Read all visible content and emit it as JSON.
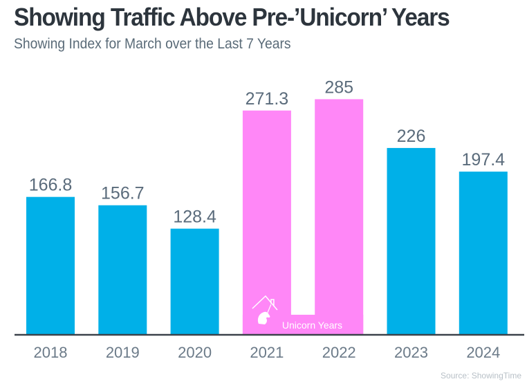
{
  "chart_data": {
    "type": "bar",
    "title": "Showing Traffic Above Pre-’Unicorn’ Years",
    "subtitle": "Showing Index for March over the Last 7 Years",
    "xlabel": "",
    "ylabel": "",
    "categories": [
      "2018",
      "2019",
      "2020",
      "2021",
      "2022",
      "2023",
      "2024"
    ],
    "values": [
      166.8,
      156.7,
      128.4,
      271.3,
      285,
      226,
      197.4
    ],
    "value_labels": [
      "166.8",
      "156.7",
      "128.4",
      "271.3",
      "285",
      "226",
      "197.4"
    ],
    "highlight": {
      "label": "Unicorn Years",
      "categories": [
        "2021",
        "2022"
      ],
      "icon": "unicorn-house-icon"
    },
    "ylim": [
      0,
      405
    ],
    "grid": false,
    "legend": "none",
    "source": "Source: ShowingTime"
  },
  "colors": {
    "bar": "#00B0E8",
    "highlight_bar": "#FF87F7",
    "axis": "#3b424a",
    "title": "#2d353d",
    "subtitle": "#5a6b78",
    "value_label": "#5a6b7b",
    "tick_label": "#6b7a88",
    "source": "#b8c0c7"
  }
}
